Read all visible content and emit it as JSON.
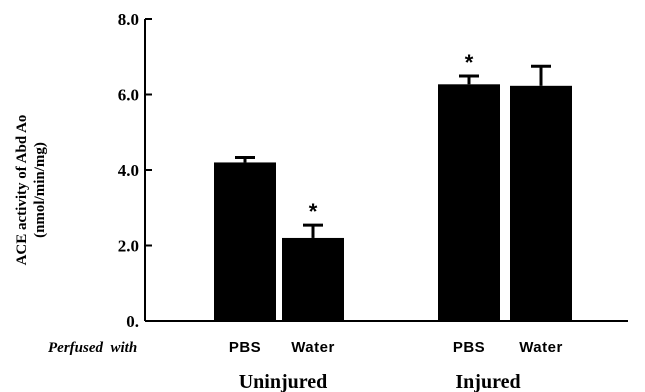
{
  "chart_data": {
    "type": "bar",
    "ylabel_line1": "ACE activity of Abd Ao",
    "ylabel_line2": "(nmol/min/mg)",
    "ylim": [
      0,
      8
    ],
    "y_ticks": [
      {
        "value": 0,
        "label": "0."
      },
      {
        "value": 2,
        "label": "2.0"
      },
      {
        "value": 4,
        "label": "4.0"
      },
      {
        "value": 6,
        "label": "6.0"
      },
      {
        "value": 8,
        "label": "8.0"
      }
    ],
    "perfused_label": "Perfused  with",
    "groups": [
      {
        "name": "Uninjured",
        "bars": [
          {
            "label": "PBS",
            "value": 4.2,
            "error": 0.13,
            "significant": false
          },
          {
            "label": "Water",
            "value": 2.2,
            "error": 0.34,
            "significant": true
          }
        ]
      },
      {
        "name": "Injured",
        "bars": [
          {
            "label": "PBS",
            "value": 6.27,
            "error": 0.22,
            "significant": true
          },
          {
            "label": "Water",
            "value": 6.23,
            "error": 0.52,
            "significant": false
          }
        ]
      }
    ],
    "significance_marker": "*",
    "grid": false,
    "legend": "none"
  }
}
